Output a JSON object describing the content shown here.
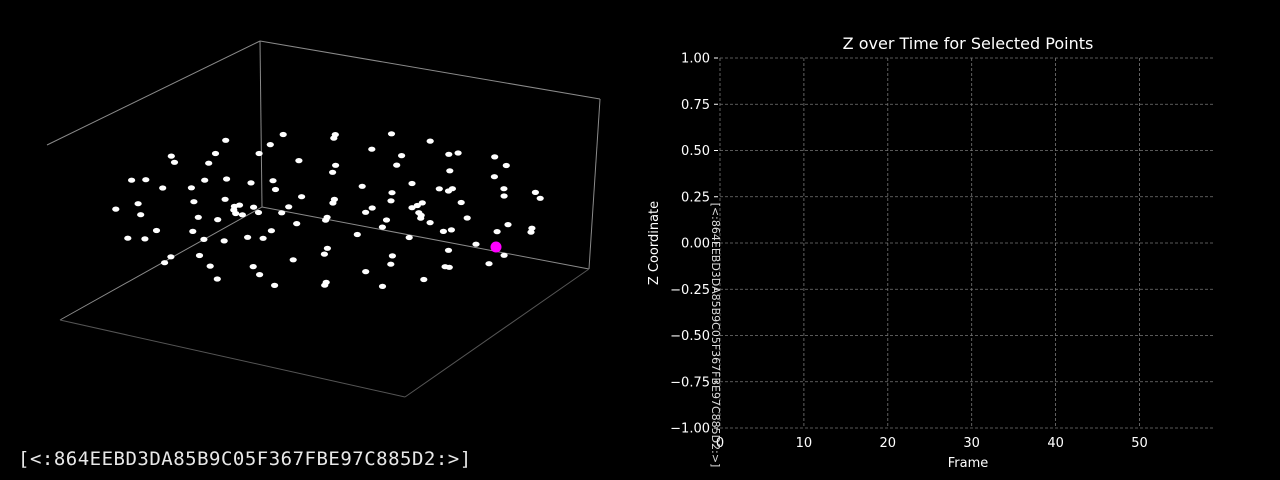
{
  "watermark": "[<:864EEBD3DA85B9C05F367FBE97C885D2:>]",
  "chart_data": [
    {
      "type": "scatter3d",
      "title": "",
      "point_color": "#ffffff",
      "highlight_color": "#ff00ff",
      "grid": false,
      "points_note": "torus of white points",
      "ring_points": 60
    },
    {
      "type": "line",
      "title": "Z over Time for Selected Points",
      "xlabel": "Frame",
      "ylabel": "Z Coordinate",
      "xlim": [
        0,
        59
      ],
      "ylim": [
        -1.0,
        1.0
      ],
      "x_ticks": [
        "0",
        "10",
        "20",
        "30",
        "40",
        "50"
      ],
      "y_ticks": [
        "1.00",
        "0.75",
        "0.50",
        "0.25",
        "0.00",
        "−0.25",
        "−0.50",
        "−0.75",
        "−1.00"
      ],
      "grid": true,
      "series": []
    }
  ]
}
